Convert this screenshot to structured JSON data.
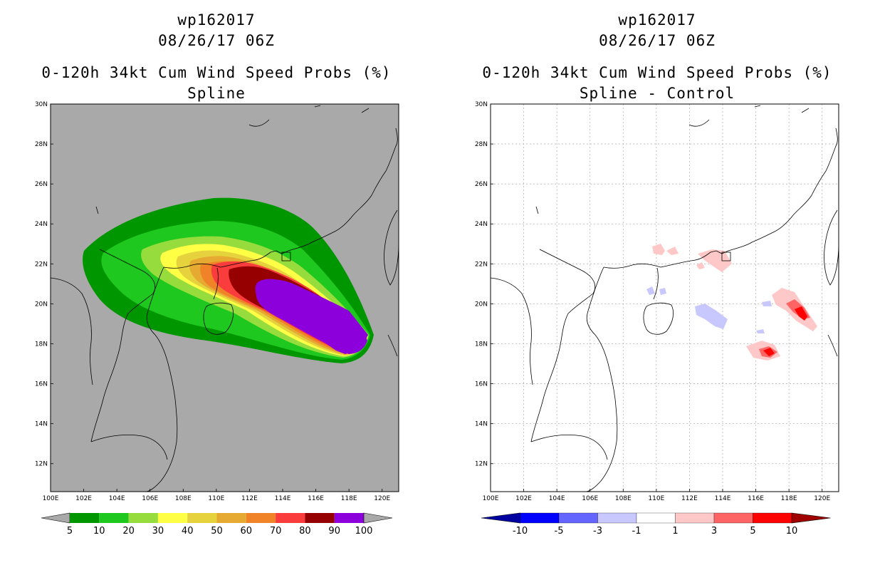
{
  "left": {
    "storm_id": "wp162017",
    "datetime": "08/26/17 06Z",
    "product": "0-120h 34kt Cum Wind Speed Probs (%)",
    "subtitle": "Spline",
    "background": "#a9a9a9",
    "colorbar": {
      "labels": [
        "5",
        "10",
        "20",
        "30",
        "40",
        "50",
        "60",
        "70",
        "80",
        "90",
        "100"
      ],
      "colors": [
        "#009600",
        "#1ec81e",
        "#96dc3c",
        "#ffff46",
        "#e6d23c",
        "#e6aa32",
        "#f08228",
        "#fa3c3c",
        "#960000",
        "#8c00dc"
      ],
      "end_color": "#a9a9a9"
    }
  },
  "right": {
    "storm_id": "wp162017",
    "datetime": "08/26/17 06Z",
    "product": "0-120h 34kt Cum Wind Speed Probs (%)",
    "subtitle": "Spline - Control",
    "background": "#ffffff",
    "colorbar": {
      "labels": [
        "-10",
        "-5",
        "-3",
        "-1",
        "1",
        "3",
        "5",
        "10"
      ],
      "colors": [
        "#0000a0",
        "#0000ff",
        "#6464ff",
        "#c8c8ff",
        "#ffffff",
        "#ffc8c8",
        "#ff6464",
        "#ff0000",
        "#a00000"
      ]
    }
  },
  "axes": {
    "lat_labels": [
      "30N",
      "28N",
      "26N",
      "24N",
      "22N",
      "20N",
      "18N",
      "16N",
      "14N",
      "12N"
    ],
    "lon_labels": [
      "100E",
      "102E",
      "104E",
      "106E",
      "108E",
      "110E",
      "112E",
      "114E",
      "116E",
      "118E",
      "120E"
    ]
  },
  "map_data": {
    "lon_range": [
      100,
      121
    ],
    "lat_range": [
      10.6,
      30
    ],
    "gridlines": "dotted-on-right-panel-only"
  }
}
